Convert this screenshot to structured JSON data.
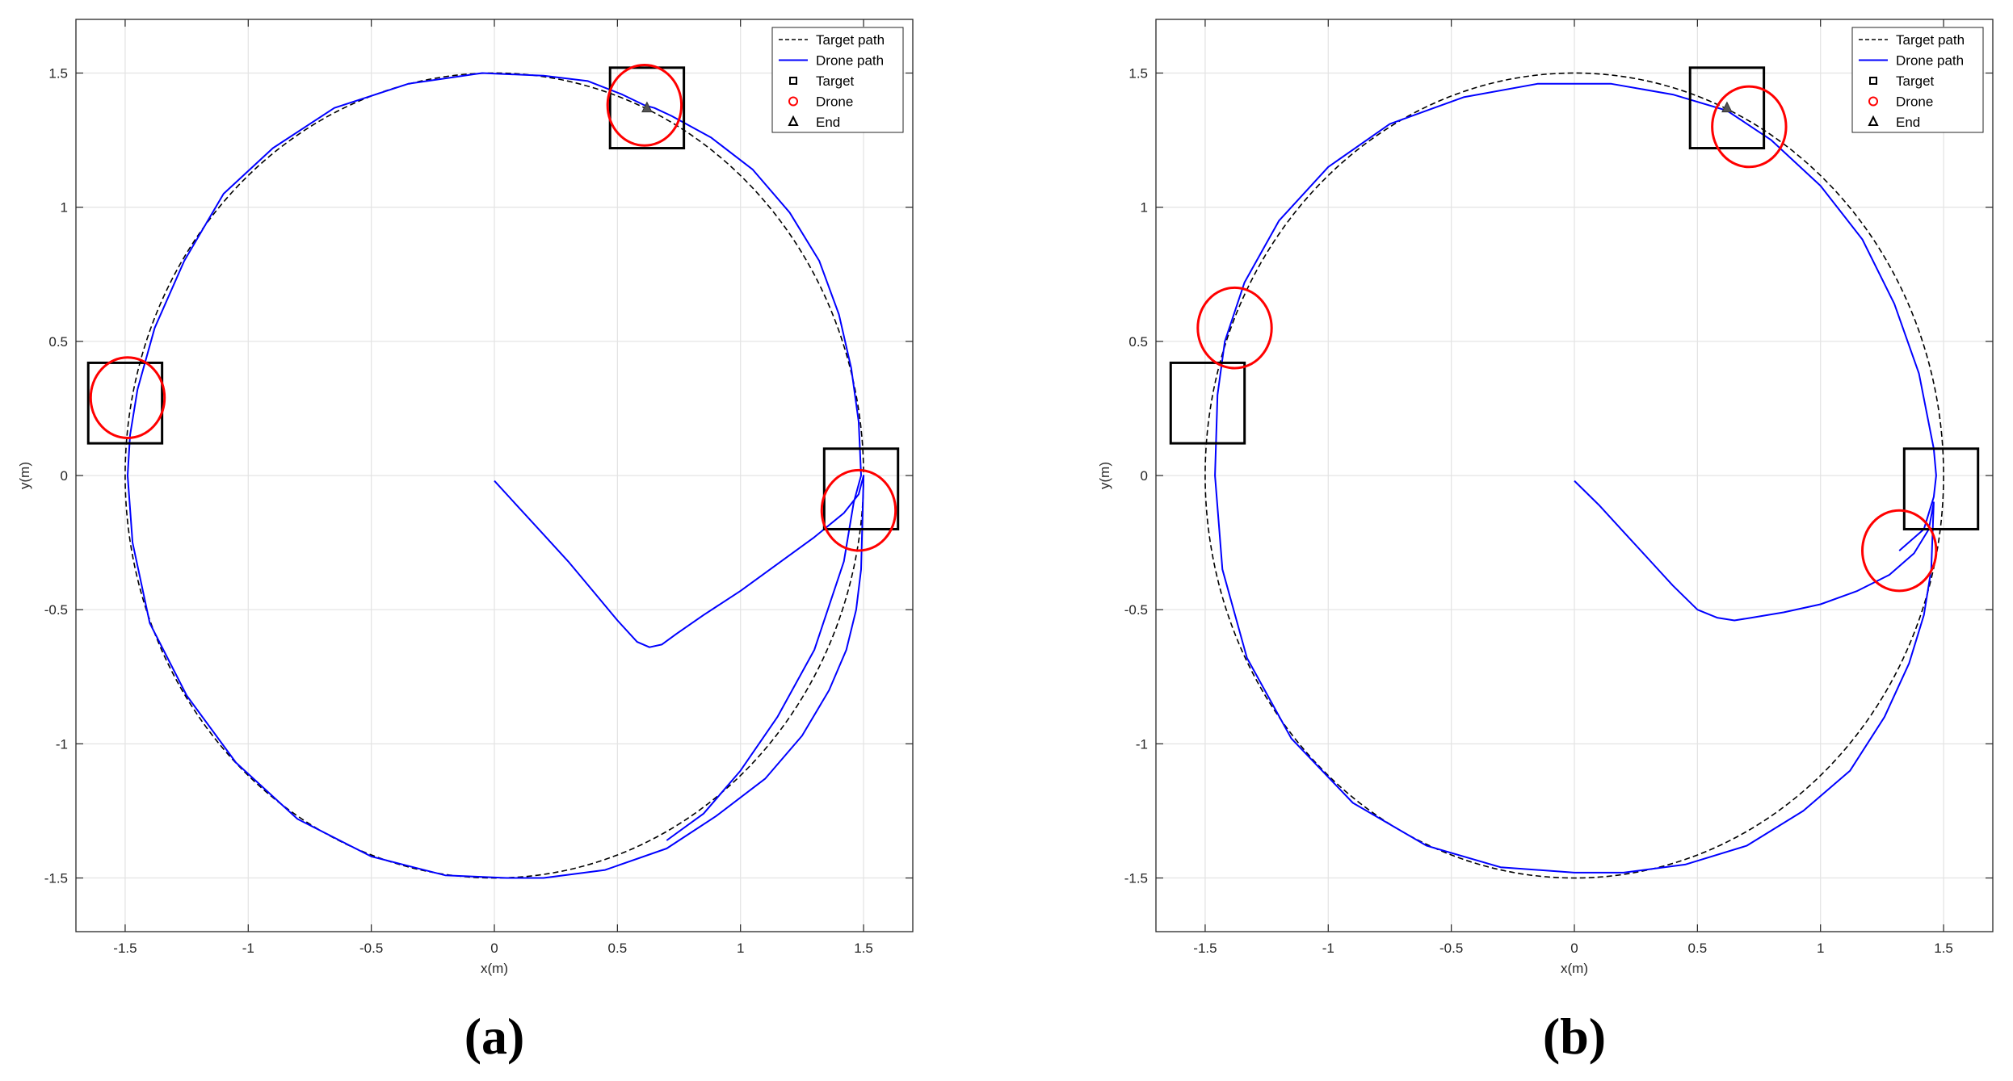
{
  "chart_data": [
    {
      "type": "line",
      "panel_label": "(a)",
      "xlabel": "x(m)",
      "ylabel": "y(m)",
      "xlim": [
        -1.7,
        1.7
      ],
      "ylim": [
        -1.7,
        1.7
      ],
      "xticks": [
        -1.5,
        -1,
        -0.5,
        0,
        0.5,
        1,
        1.5
      ],
      "yticks": [
        -1.5,
        -1,
        -0.5,
        0,
        0.5,
        1,
        1.5
      ],
      "xtick_labels": [
        "-1.5",
        "-1",
        "-0.5",
        "0",
        "0.5",
        "1",
        "1.5"
      ],
      "ytick_labels": [
        "-1.5",
        "-1",
        "-0.5",
        "0",
        "0.5",
        "1",
        "1.5"
      ],
      "grid": true,
      "legend": {
        "placement": "top-right",
        "entries": [
          "Target path",
          "Drone path",
          "Target",
          "Drone",
          "End"
        ]
      },
      "series": [
        {
          "name": "Target path",
          "style": "dashed",
          "color": "#000000",
          "shape": "circle",
          "center": [
            0,
            0
          ],
          "radius": 1.5
        },
        {
          "name": "Drone path",
          "style": "solid",
          "color": "#0000ff",
          "x": [
            0.0,
            0.1,
            0.2,
            0.3,
            0.4,
            0.5,
            0.58,
            0.63,
            0.68,
            0.74,
            0.85,
            1.0,
            1.15,
            1.3,
            1.42,
            1.48,
            1.5,
            1.49,
            1.47,
            1.43,
            1.36,
            1.25,
            1.1,
            0.9,
            0.7,
            0.45,
            0.2,
            0.05,
            -0.2,
            -0.5,
            -0.8,
            -1.05,
            -1.25,
            -1.4,
            -1.47,
            -1.49,
            -1.48,
            -1.45,
            -1.38,
            -1.26,
            -1.1,
            -0.9,
            -0.65,
            -0.35,
            -0.05,
            0.2,
            0.38,
            0.52,
            0.61,
            0.65,
            0.72,
            0.88,
            1.05,
            1.2,
            1.32,
            1.4,
            1.45,
            1.48,
            1.49,
            1.46,
            1.42,
            1.3,
            1.15,
            1.0,
            0.85,
            0.7
          ],
          "y": [
            -0.02,
            -0.12,
            -0.22,
            -0.32,
            -0.43,
            -0.54,
            -0.62,
            -0.64,
            -0.63,
            -0.59,
            -0.52,
            -0.43,
            -0.33,
            -0.23,
            -0.14,
            -0.07,
            0.0,
            -0.35,
            -0.5,
            -0.65,
            -0.8,
            -0.97,
            -1.13,
            -1.27,
            -1.39,
            -1.47,
            -1.5,
            -1.5,
            -1.49,
            -1.42,
            -1.28,
            -1.07,
            -0.82,
            -0.55,
            -0.25,
            0.0,
            0.15,
            0.32,
            0.55,
            0.8,
            1.05,
            1.22,
            1.37,
            1.46,
            1.5,
            1.49,
            1.47,
            1.42,
            1.38,
            1.37,
            1.34,
            1.26,
            1.14,
            0.98,
            0.8,
            0.6,
            0.4,
            0.2,
            0.0,
            -0.1,
            -0.32,
            -0.65,
            -0.9,
            -1.1,
            -1.26,
            -1.36
          ]
        }
      ],
      "targets": [
        [
          -1.5,
          0.27
        ],
        [
          0.62,
          1.37
        ],
        [
          1.49,
          -0.05
        ]
      ],
      "target_size": 0.3,
      "drones": [
        [
          -1.49,
          0.29
        ],
        [
          0.61,
          1.38
        ],
        [
          1.48,
          -0.13
        ]
      ],
      "drone_radius": 0.15,
      "end": [
        0.62,
        1.37
      ]
    },
    {
      "type": "line",
      "panel_label": "(b)",
      "xlabel": "x(m)",
      "ylabel": "y(m)",
      "xlim": [
        -1.7,
        1.7
      ],
      "ylim": [
        -1.7,
        1.7
      ],
      "xticks": [
        -1.5,
        -1,
        -0.5,
        0,
        0.5,
        1,
        1.5
      ],
      "yticks": [
        -1.5,
        -1,
        -0.5,
        0,
        0.5,
        1,
        1.5
      ],
      "xtick_labels": [
        "-1.5",
        "-1",
        "-0.5",
        "0",
        "0.5",
        "1",
        "1.5"
      ],
      "ytick_labels": [
        "-1.5",
        "-1",
        "-0.5",
        "0",
        "0.5",
        "1",
        "1.5"
      ],
      "grid": true,
      "legend": {
        "placement": "top-right",
        "entries": [
          "Target path",
          "Drone path",
          "Target",
          "Drone",
          "End"
        ]
      },
      "series": [
        {
          "name": "Target path",
          "style": "dashed",
          "color": "#000000",
          "shape": "circle",
          "center": [
            0,
            0
          ],
          "radius": 1.5
        },
        {
          "name": "Drone path",
          "style": "solid",
          "color": "#0000ff",
          "x": [
            0.0,
            0.1,
            0.2,
            0.3,
            0.4,
            0.5,
            0.58,
            0.65,
            0.72,
            0.85,
            1.0,
            1.15,
            1.28,
            1.38,
            1.44,
            1.46,
            1.45,
            1.42,
            1.36,
            1.26,
            1.12,
            0.93,
            0.7,
            0.45,
            0.2,
            0.0,
            -0.3,
            -0.6,
            -0.9,
            -1.15,
            -1.33,
            -1.43,
            -1.46,
            -1.45,
            -1.42,
            -1.34,
            -1.2,
            -1.0,
            -0.75,
            -0.45,
            -0.15,
            0.15,
            0.4,
            0.62,
            0.8,
            1.0,
            1.17,
            1.3,
            1.4,
            1.46,
            1.47,
            1.46,
            1.42,
            1.32
          ],
          "y": [
            -0.02,
            -0.11,
            -0.21,
            -0.31,
            -0.41,
            -0.5,
            -0.53,
            -0.54,
            -0.53,
            -0.51,
            -0.48,
            -0.43,
            -0.37,
            -0.29,
            -0.2,
            -0.1,
            -0.35,
            -0.52,
            -0.7,
            -0.9,
            -1.1,
            -1.25,
            -1.38,
            -1.45,
            -1.48,
            -1.48,
            -1.46,
            -1.38,
            -1.22,
            -0.98,
            -0.68,
            -0.35,
            0.0,
            0.3,
            0.5,
            0.72,
            0.95,
            1.15,
            1.31,
            1.41,
            1.46,
            1.46,
            1.42,
            1.36,
            1.25,
            1.08,
            0.88,
            0.64,
            0.38,
            0.1,
            0.0,
            -0.08,
            -0.2,
            -0.28
          ]
        }
      ],
      "targets": [
        [
          -1.49,
          0.27
        ],
        [
          0.62,
          1.37
        ],
        [
          1.49,
          -0.05
        ]
      ],
      "target_size": 0.3,
      "drones": [
        [
          -1.38,
          0.55
        ],
        [
          0.71,
          1.3
        ],
        [
          1.32,
          -0.28
        ]
      ],
      "drone_radius": 0.15,
      "end": [
        0.62,
        1.37
      ]
    }
  ]
}
